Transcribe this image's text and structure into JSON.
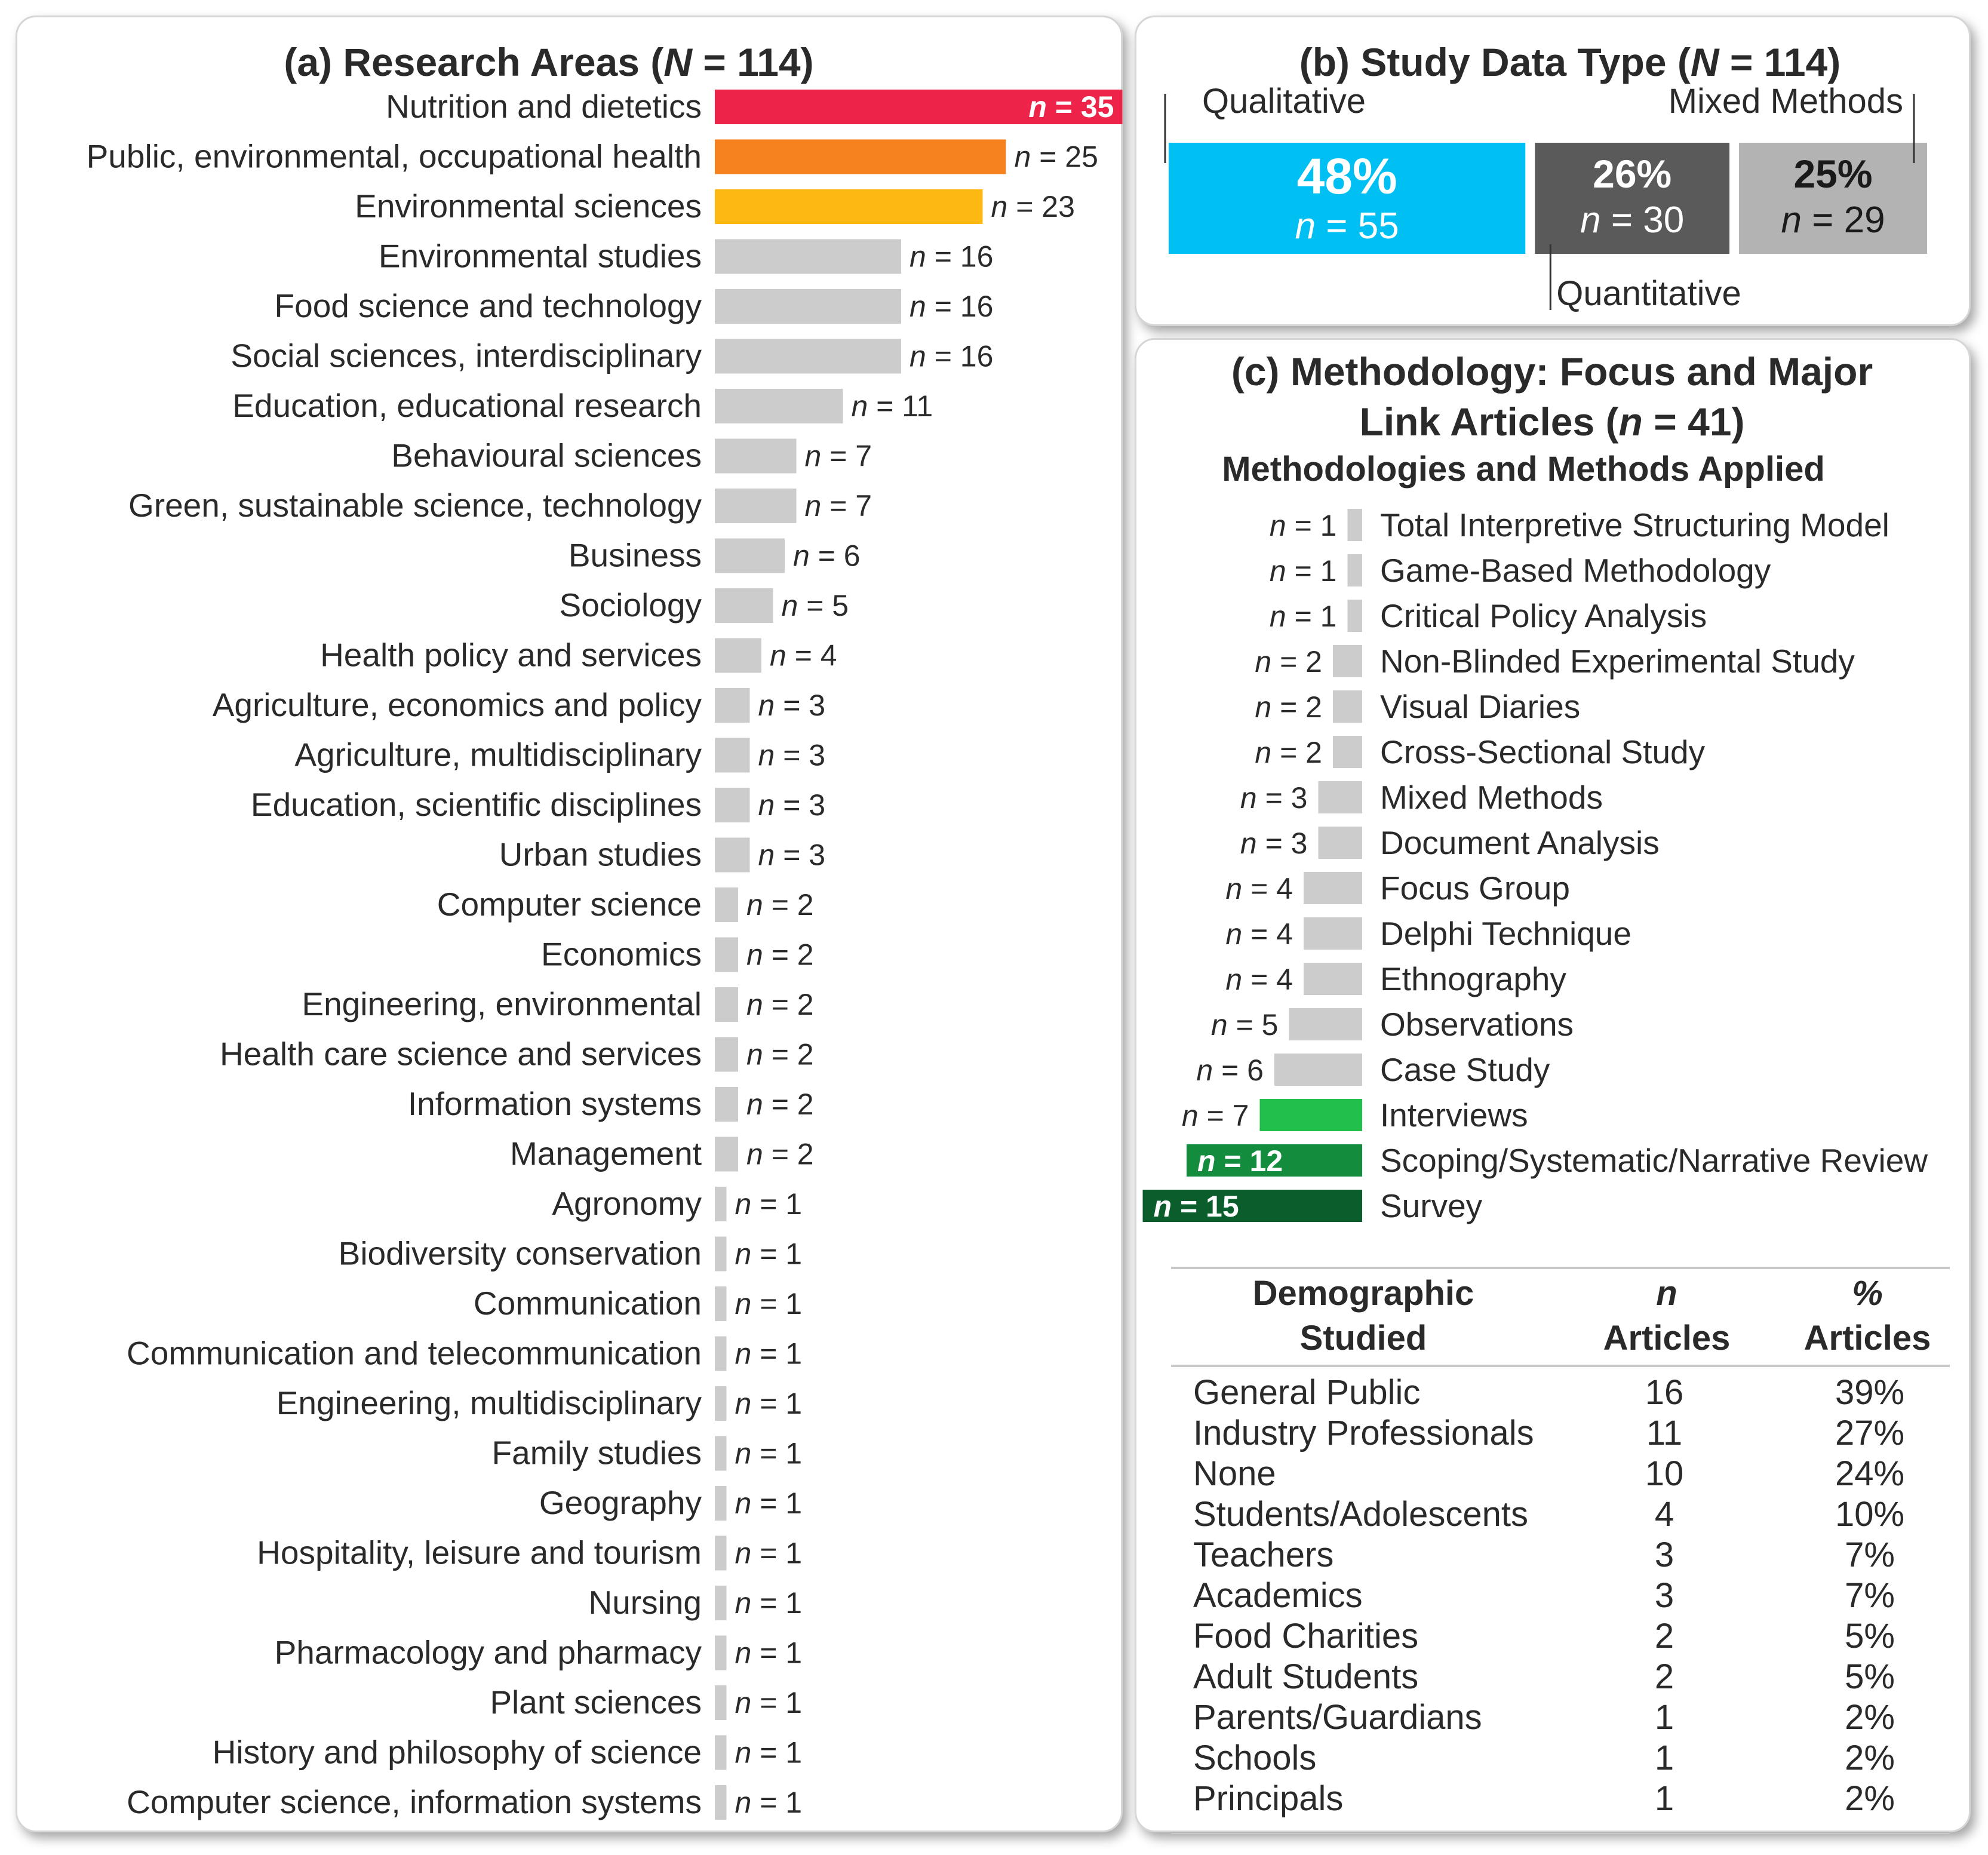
{
  "chart_data": [
    {
      "type": "bar",
      "orientation": "horizontal",
      "panel": "a",
      "title_parts": [
        "(a) Research Areas (",
        "N",
        " = 114)"
      ],
      "n_prefix": "n",
      "categories": [
        "Nutrition and dietetics",
        "Public, environmental, occupational health",
        "Environmental sciences",
        "Environmental studies",
        "Food science and technology",
        "Social sciences, interdisciplinary",
        "Education, educational research",
        "Behavioural sciences",
        "Green, sustainable science, technology",
        "Business",
        "Sociology",
        "Health policy and services",
        "Agriculture, economics and policy",
        "Agriculture, multidisciplinary",
        "Education, scientific disciplines",
        "Urban studies",
        "Computer science",
        "Economics",
        "Engineering, environmental",
        "Health care science and services",
        "Information systems",
        "Management",
        "Agronomy",
        "Biodiversity conservation",
        "Communication",
        "Communication and telecommunication",
        "Engineering, multidisciplinary",
        "Family studies",
        "Geography",
        "Hospitality, leisure and tourism",
        "Nursing",
        "Pharmacology and pharmacy",
        "Plant sciences",
        "History and philosophy of science",
        "Computer science, information systems"
      ],
      "values": [
        35,
        25,
        23,
        16,
        16,
        16,
        11,
        7,
        7,
        6,
        5,
        4,
        3,
        3,
        3,
        3,
        2,
        2,
        2,
        2,
        2,
        2,
        1,
        1,
        1,
        1,
        1,
        1,
        1,
        1,
        1,
        1,
        1,
        1,
        1
      ],
      "highlight_colors": [
        "#ee2349",
        "#f5821f",
        "#fdb813"
      ],
      "default_color": "#cccccc"
    },
    {
      "type": "bar",
      "orientation": "stacked-horizontal",
      "panel": "b",
      "title_parts": [
        "(b) Study Data Type (",
        "N",
        " = 114)"
      ],
      "segments": [
        {
          "name": "Qualitative",
          "percent_label": "48%",
          "value": 55,
          "color": "#00c0f3",
          "text_color": "#ffffff"
        },
        {
          "name": "Quantitative",
          "percent_label": "26%",
          "value": 30,
          "color": "#5a5a5a",
          "text_color": "#ffffff"
        },
        {
          "name": "Mixed Methods",
          "percent_label": "25%",
          "value": 29,
          "color": "#b3b3b3",
          "text_color": "#1a1a1a"
        }
      ]
    },
    {
      "type": "bar",
      "orientation": "horizontal-reversed",
      "panel": "c",
      "title_lines": [
        "(c) Methodology: Focus and Major",
        "Link Articles ("
      ],
      "title_n": "n",
      "title_tail": " = 41)",
      "subtitle": "Methodologies and Methods Applied",
      "n_prefix": "n",
      "categories": [
        "Total Interpretive Structuring Model",
        "Game-Based Methodology",
        "Critical Policy Analysis",
        "Non-Blinded Experimental Study",
        "Visual Diaries",
        "Cross-Sectional Study",
        "Mixed Methods",
        "Document Analysis",
        "Focus Group",
        "Delphi Technique",
        "Ethnography",
        "Observations",
        "Case Study",
        "Interviews",
        "Scoping/Systematic/Narrative Review",
        "Survey"
      ],
      "values": [
        1,
        1,
        1,
        2,
        2,
        2,
        3,
        3,
        4,
        4,
        4,
        5,
        6,
        7,
        12,
        15
      ],
      "highlight_colors": {
        "Interviews": "#22c04a",
        "Scoping/Systematic/Narrative Review": "#138d3d",
        "Survey": "#0b5e2c"
      },
      "default_color": "#cccccc"
    },
    {
      "type": "table",
      "panel": "c",
      "columns": [
        [
          "Demographic",
          "Studied"
        ],
        [
          "n",
          "Articles"
        ],
        [
          "%",
          "Articles"
        ]
      ],
      "rows": [
        [
          "General Public",
          "16",
          "39%"
        ],
        [
          "Industry Professionals",
          "11",
          "27%"
        ],
        [
          "None",
          "10",
          "24%"
        ],
        [
          "Students/Adolescents",
          "4",
          "10%"
        ],
        [
          "Teachers",
          "3",
          "7%"
        ],
        [
          "Academics",
          "3",
          "7%"
        ],
        [
          "Food Charities",
          "2",
          "5%"
        ],
        [
          "Adult Students",
          "2",
          "5%"
        ],
        [
          "Parents/Guardians",
          "1",
          "2%"
        ],
        [
          "Schools",
          "1",
          "2%"
        ],
        [
          "Principals",
          "1",
          "2%"
        ]
      ]
    }
  ]
}
